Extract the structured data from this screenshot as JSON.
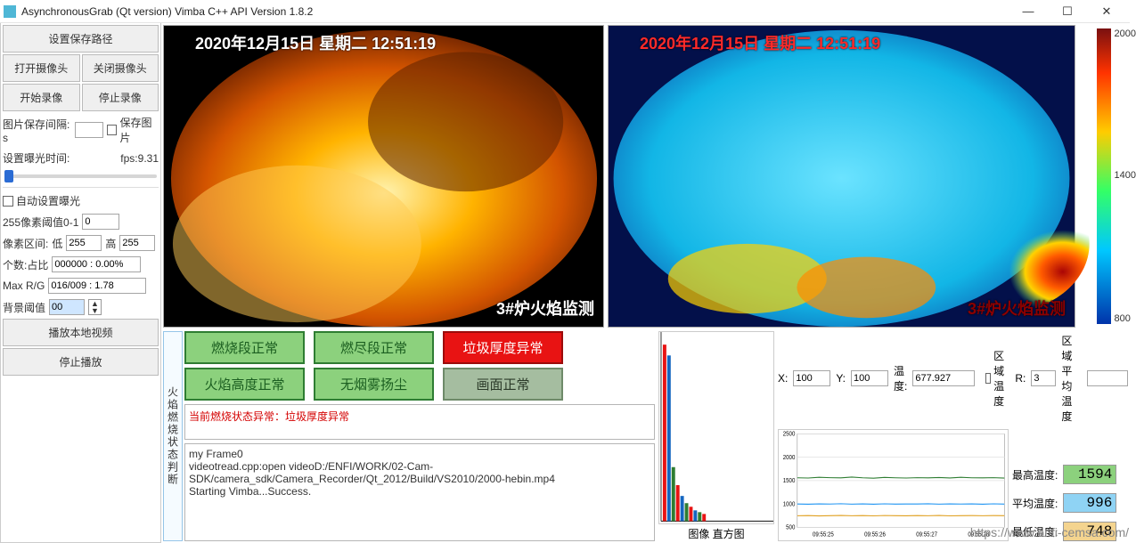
{
  "window": {
    "title": "AsynchronousGrab (Qt version) Vimba C++ API Version 1.8.2",
    "minimize": "—",
    "maximize": "☐",
    "close": "✕"
  },
  "left_panel": {
    "set_save_path": "设置保存路径",
    "open_camera": "打开摄像头",
    "close_camera": "关闭摄像头",
    "start_record": "开始录像",
    "stop_record": "停止录像",
    "save_interval_label": "图片保存间隔: s",
    "save_interval_value": "",
    "save_image_label": "保存图片",
    "exposure_label": "设置曝光时间:",
    "fps_label": "fps:9.31",
    "auto_exposure_label": "自动设置曝光",
    "threshold255_label": "255像素阈值0-1",
    "threshold255_value": "0",
    "pixel_range_label": "像素区间:",
    "low_label": "低",
    "low_value": "255",
    "high_label": "高",
    "high_value": "255",
    "count_ratio_label": "个数:占比",
    "count_ratio_value": "000000 : 0.00%",
    "max_rg_label": "Max R/G",
    "max_rg_value": "016/009 : 1.78",
    "bg_threshold_label": "背景阈值",
    "bg_threshold_value": "00",
    "play_local_video": "播放本地视频",
    "stop_play": "停止播放"
  },
  "video": {
    "timestamp_flame": "2020年12月15日 星期二 12:51:19",
    "timestamp_thermal": "2020年12月15日 星期二 12:51:19",
    "flame_camera_label": "3#炉火焰监测",
    "thermal_camera_label": "3#炉火焰监测",
    "colorbar_top": "2000",
    "colorbar_mid": "1400",
    "colorbar_bot": "800"
  },
  "status": {
    "vert_title": "火焰燃烧状态判断",
    "buttons": [
      {
        "label": "燃烧段正常",
        "bg": "#8cd17d",
        "border": "#2e7d32",
        "fg": "#1b5e20"
      },
      {
        "label": "燃尽段正常",
        "bg": "#8cd17d",
        "border": "#2e7d32",
        "fg": "#1b5e20"
      },
      {
        "label": "垃圾厚度异常",
        "bg": "#e81313",
        "border": "#9c0b0b",
        "fg": "#ffffff"
      },
      {
        "label": "火焰高度正常",
        "bg": "#8cd17d",
        "border": "#2e7d32",
        "fg": "#1b5e20"
      },
      {
        "label": "无烟雾扬尘",
        "bg": "#8cd17d",
        "border": "#2e7d32",
        "fg": "#1b5e20"
      },
      {
        "label": "画面正常",
        "bg": "#a5bda0",
        "border": "#6e8a69",
        "fg": "#2b3a29"
      }
    ],
    "msg_text": "当前燃烧状态异常：垃圾厚度异常",
    "msg_color": "#d40000",
    "log_line1": "my Frame0",
    "log_line2": "videotread.cpp:open videoD:/ENFI/WORK/02-Cam-SDK/camera_sdk/Camera_Recorder/Qt_2012/Build/VS2010/2000-hebin.mp4",
    "log_line3": "Starting Vimba...Success."
  },
  "histogram": {
    "caption": "图像 直方图",
    "bars": [
      {
        "h": 0.98,
        "c": "#e81313"
      },
      {
        "h": 0.92,
        "c": "#1565c0"
      },
      {
        "h": 0.3,
        "c": "#2e7d32"
      },
      {
        "h": 0.2,
        "c": "#e81313"
      },
      {
        "h": 0.14,
        "c": "#1565c0"
      },
      {
        "h": 0.1,
        "c": "#2e7d32"
      },
      {
        "h": 0.08,
        "c": "#e81313"
      },
      {
        "h": 0.06,
        "c": "#1565c0"
      },
      {
        "h": 0.05,
        "c": "#2e7d32"
      },
      {
        "h": 0.04,
        "c": "#e81313"
      }
    ]
  },
  "graph_controls": {
    "x_label": "X:",
    "x_value": "100",
    "y_label": "Y:",
    "y_value": "100",
    "temp_label": "温度:",
    "temp_value": "677.927",
    "region_temp_cb": "区域温度",
    "r_label": "R:",
    "r_value": "3",
    "region_avg_label": "区域平均温度",
    "region_avg_value": ""
  },
  "line_chart": {
    "ylim": [
      500,
      2500
    ],
    "ytick_step": 500,
    "yticks": [
      "2500",
      "2000",
      "1500",
      "1000",
      "500"
    ],
    "xticks": [
      "09:55:25",
      "09:55:26",
      "09:55:27",
      "09:55:28"
    ],
    "background_color": "#ffffff",
    "grid_color": "#e0e0e0",
    "series": [
      {
        "name": "max",
        "color": "#2e7d32",
        "values": [
          1560,
          1555,
          1570,
          1562,
          1558,
          1575,
          1560,
          1552,
          1568,
          1560,
          1555,
          1562,
          1558,
          1565,
          1556,
          1570,
          1560,
          1558,
          1562,
          1554
        ]
      },
      {
        "name": "avg",
        "color": "#2196f3",
        "values": [
          1000,
          995,
          1002,
          998,
          1005,
          996,
          1001,
          994,
          1003,
          997,
          1000,
          999,
          1004,
          996,
          1002,
          998,
          1001,
          995,
          1003,
          997
        ]
      },
      {
        "name": "min",
        "color": "#e0a020",
        "values": [
          748,
          752,
          745,
          750,
          755,
          748,
          751,
          746,
          753,
          749,
          747,
          752,
          748,
          754,
          746,
          750,
          752,
          748,
          751,
          749
        ]
      }
    ]
  },
  "temp_readouts": {
    "max_label": "最高温度:",
    "max_value": "1594",
    "max_bg": "#8cd17d",
    "avg_label": "平均温度:",
    "avg_value": "996",
    "avg_bg": "#8fd3f4",
    "min_label": "最低温度:",
    "min_value": "748",
    "min_bg": "#f4d48f"
  },
  "watermark": "https://www.enfi-cemsa.com/"
}
